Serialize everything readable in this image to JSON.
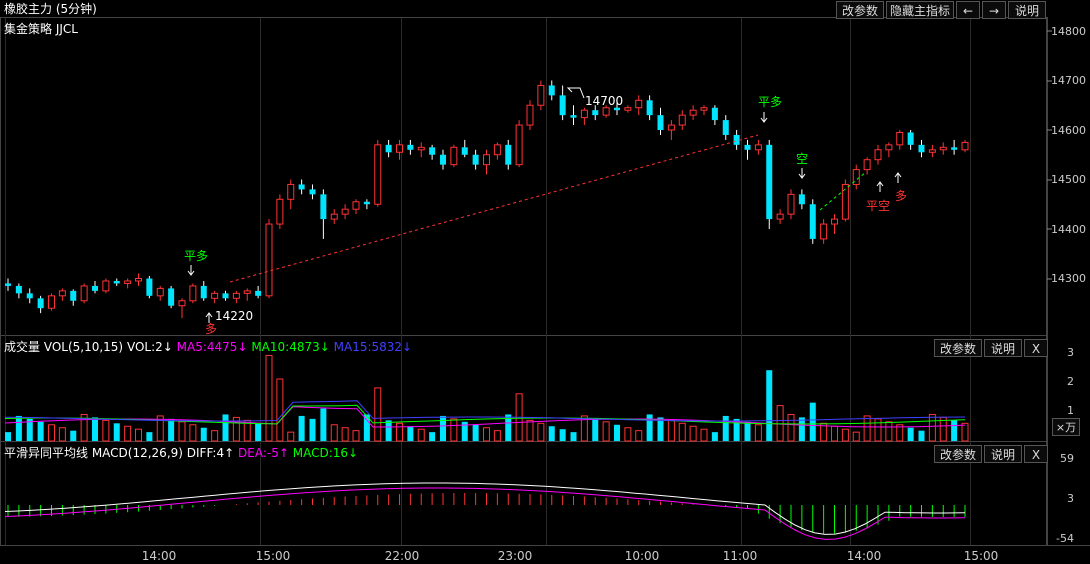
{
  "header": {
    "title": "橡胶主力 (5分钟)",
    "strategy": "集金策略 JJCL",
    "btn_params": "改参数",
    "btn_hide": "隐藏主指标",
    "btn_left": "←",
    "btn_right": "→",
    "btn_help": "说明"
  },
  "price_axis": [
    "14800",
    "14700",
    "14600",
    "14500",
    "14400",
    "14300"
  ],
  "annotations": {
    "hi": "14700",
    "lo": "14220",
    "ping_duo": "平多",
    "kong": "空",
    "ping_kong": "平空",
    "duo": "多"
  },
  "vol_panel": {
    "label": "成交量 VOL(5,10,15)",
    "vol": "VOL:2↓",
    "ma5": "MA5:4475↓",
    "ma10": "MA10:4873↓",
    "ma15": "MA15:5832↓",
    "btn_params": "改参数",
    "btn_help": "说明",
    "btn_close": "X",
    "unit": "×万",
    "axis": [
      "3",
      "2",
      "1"
    ]
  },
  "macd_panel": {
    "label": "平滑异同平均线 MACD(12,26,9)",
    "diff": "DIFF:4↑",
    "dea": "DEA:-5↑",
    "macd": "MACD:16↓",
    "btn_params": "改参数",
    "btn_help": "说明",
    "btn_close": "X",
    "axis": [
      "59",
      "3",
      "-54"
    ]
  },
  "x_axis": [
    "14:00",
    "15:00",
    "22:00",
    "23:00",
    "10:00",
    "11:00",
    "14:00",
    "15:00"
  ],
  "colors": {
    "up": "#ff3333",
    "down": "#00e5ff",
    "ma5": "#ff00ff",
    "ma10": "#00ff00",
    "ma15": "#4040ff",
    "diff": "#ffffff",
    "dea": "#ff00ff"
  }
}
